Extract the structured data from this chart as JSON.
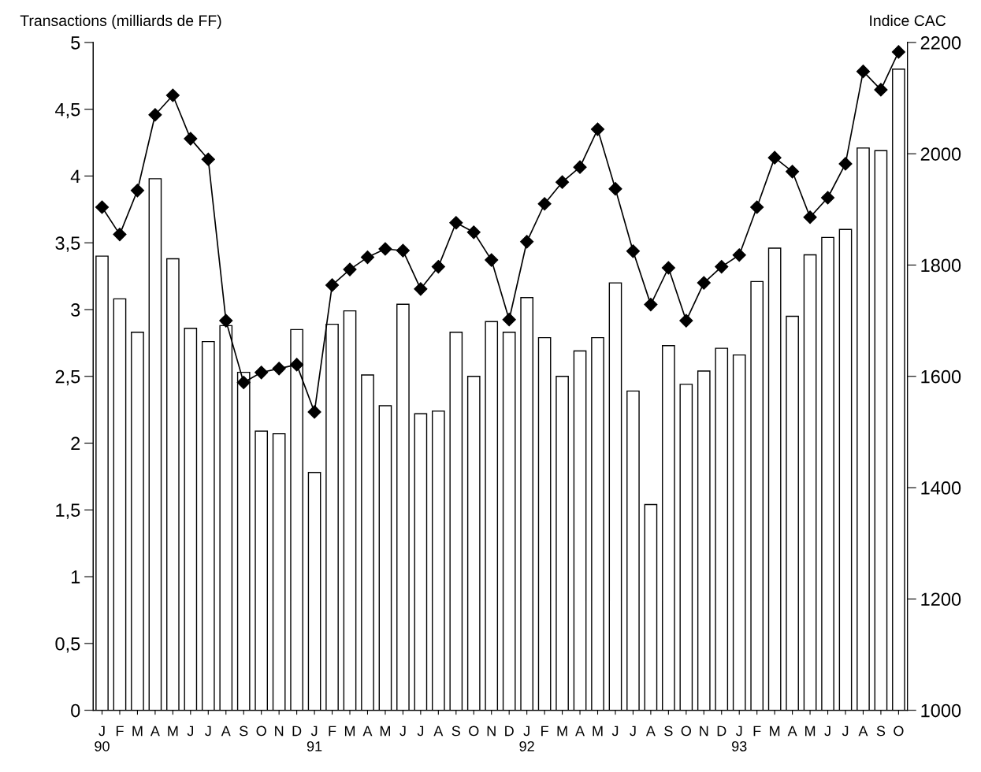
{
  "chart_data": {
    "type": "bar",
    "ylabel": "Transactions (milliards de FF)",
    "y2label": "Indice CAC",
    "categories": [
      "J\n90",
      "F",
      "M",
      "A",
      "M",
      "J",
      "J",
      "A",
      "S",
      "O",
      "N",
      "D",
      "J\n91",
      "F",
      "M",
      "A",
      "M",
      "J",
      "J",
      "A",
      "S",
      "O",
      "N",
      "D",
      "J\n92",
      "F",
      "M",
      "A",
      "M",
      "J",
      "J",
      "A",
      "S",
      "O",
      "N",
      "D",
      "J\n93",
      "F",
      "M",
      "A",
      "M",
      "J",
      "J",
      "A",
      "S",
      "O"
    ],
    "series": [
      {
        "color": "#ffffff",
        "values": [
          3.4,
          3.08,
          2.83,
          3.98,
          3.38,
          2.86,
          2.76,
          2.88,
          2.53,
          2.09,
          2.07,
          2.85,
          1.78,
          2.89,
          2.99,
          2.51,
          2.28,
          3.04,
          2.22,
          2.24,
          2.83,
          2.5,
          2.91,
          2.83,
          3.09,
          2.79,
          2.5,
          2.69,
          2.79,
          3.2,
          2.39,
          1.54,
          2.73,
          2.44,
          2.54,
          2.71,
          2.66,
          3.21,
          3.46,
          2.95,
          3.41,
          3.54,
          3.6,
          4.21,
          4.19,
          4.8
        ]
      },
      {
        "type": "line",
        "axis": "y2",
        "color": "#000000",
        "marker": "diamond",
        "line_style": "solid",
        "values": [
          1904,
          1855,
          1934,
          2070,
          2105,
          2027,
          1990,
          1700,
          1589,
          1607,
          1614,
          1621,
          1536,
          1764,
          1792,
          1814,
          1829,
          1826,
          1757,
          1797,
          1876,
          1859,
          1809,
          1702,
          1842,
          1910,
          1949,
          1976,
          2044,
          1937,
          1825,
          1729,
          1795,
          1700,
          1768,
          1797,
          1818,
          1904,
          1993,
          1968,
          1886,
          1921,
          1982,
          2148,
          2115,
          2183
        ]
      }
    ],
    "ylim": [
      0,
      5
    ],
    "yticks": [
      0,
      {
        "value": 0.5,
        "label": "0,5"
      },
      1,
      {
        "value": 1.5,
        "label": "1,5"
      },
      2,
      {
        "value": 2.5,
        "label": "2,5"
      },
      3,
      {
        "value": 3.5,
        "label": "3,5"
      },
      4,
      {
        "value": 4.5,
        "label": "4,5"
      },
      5
    ],
    "y2lim": [
      1000,
      2200
    ],
    "y2ticks": [
      1000,
      1200,
      1400,
      1600,
      1800,
      2000,
      2200
    ],
    "grid": false,
    "legend": false
  }
}
